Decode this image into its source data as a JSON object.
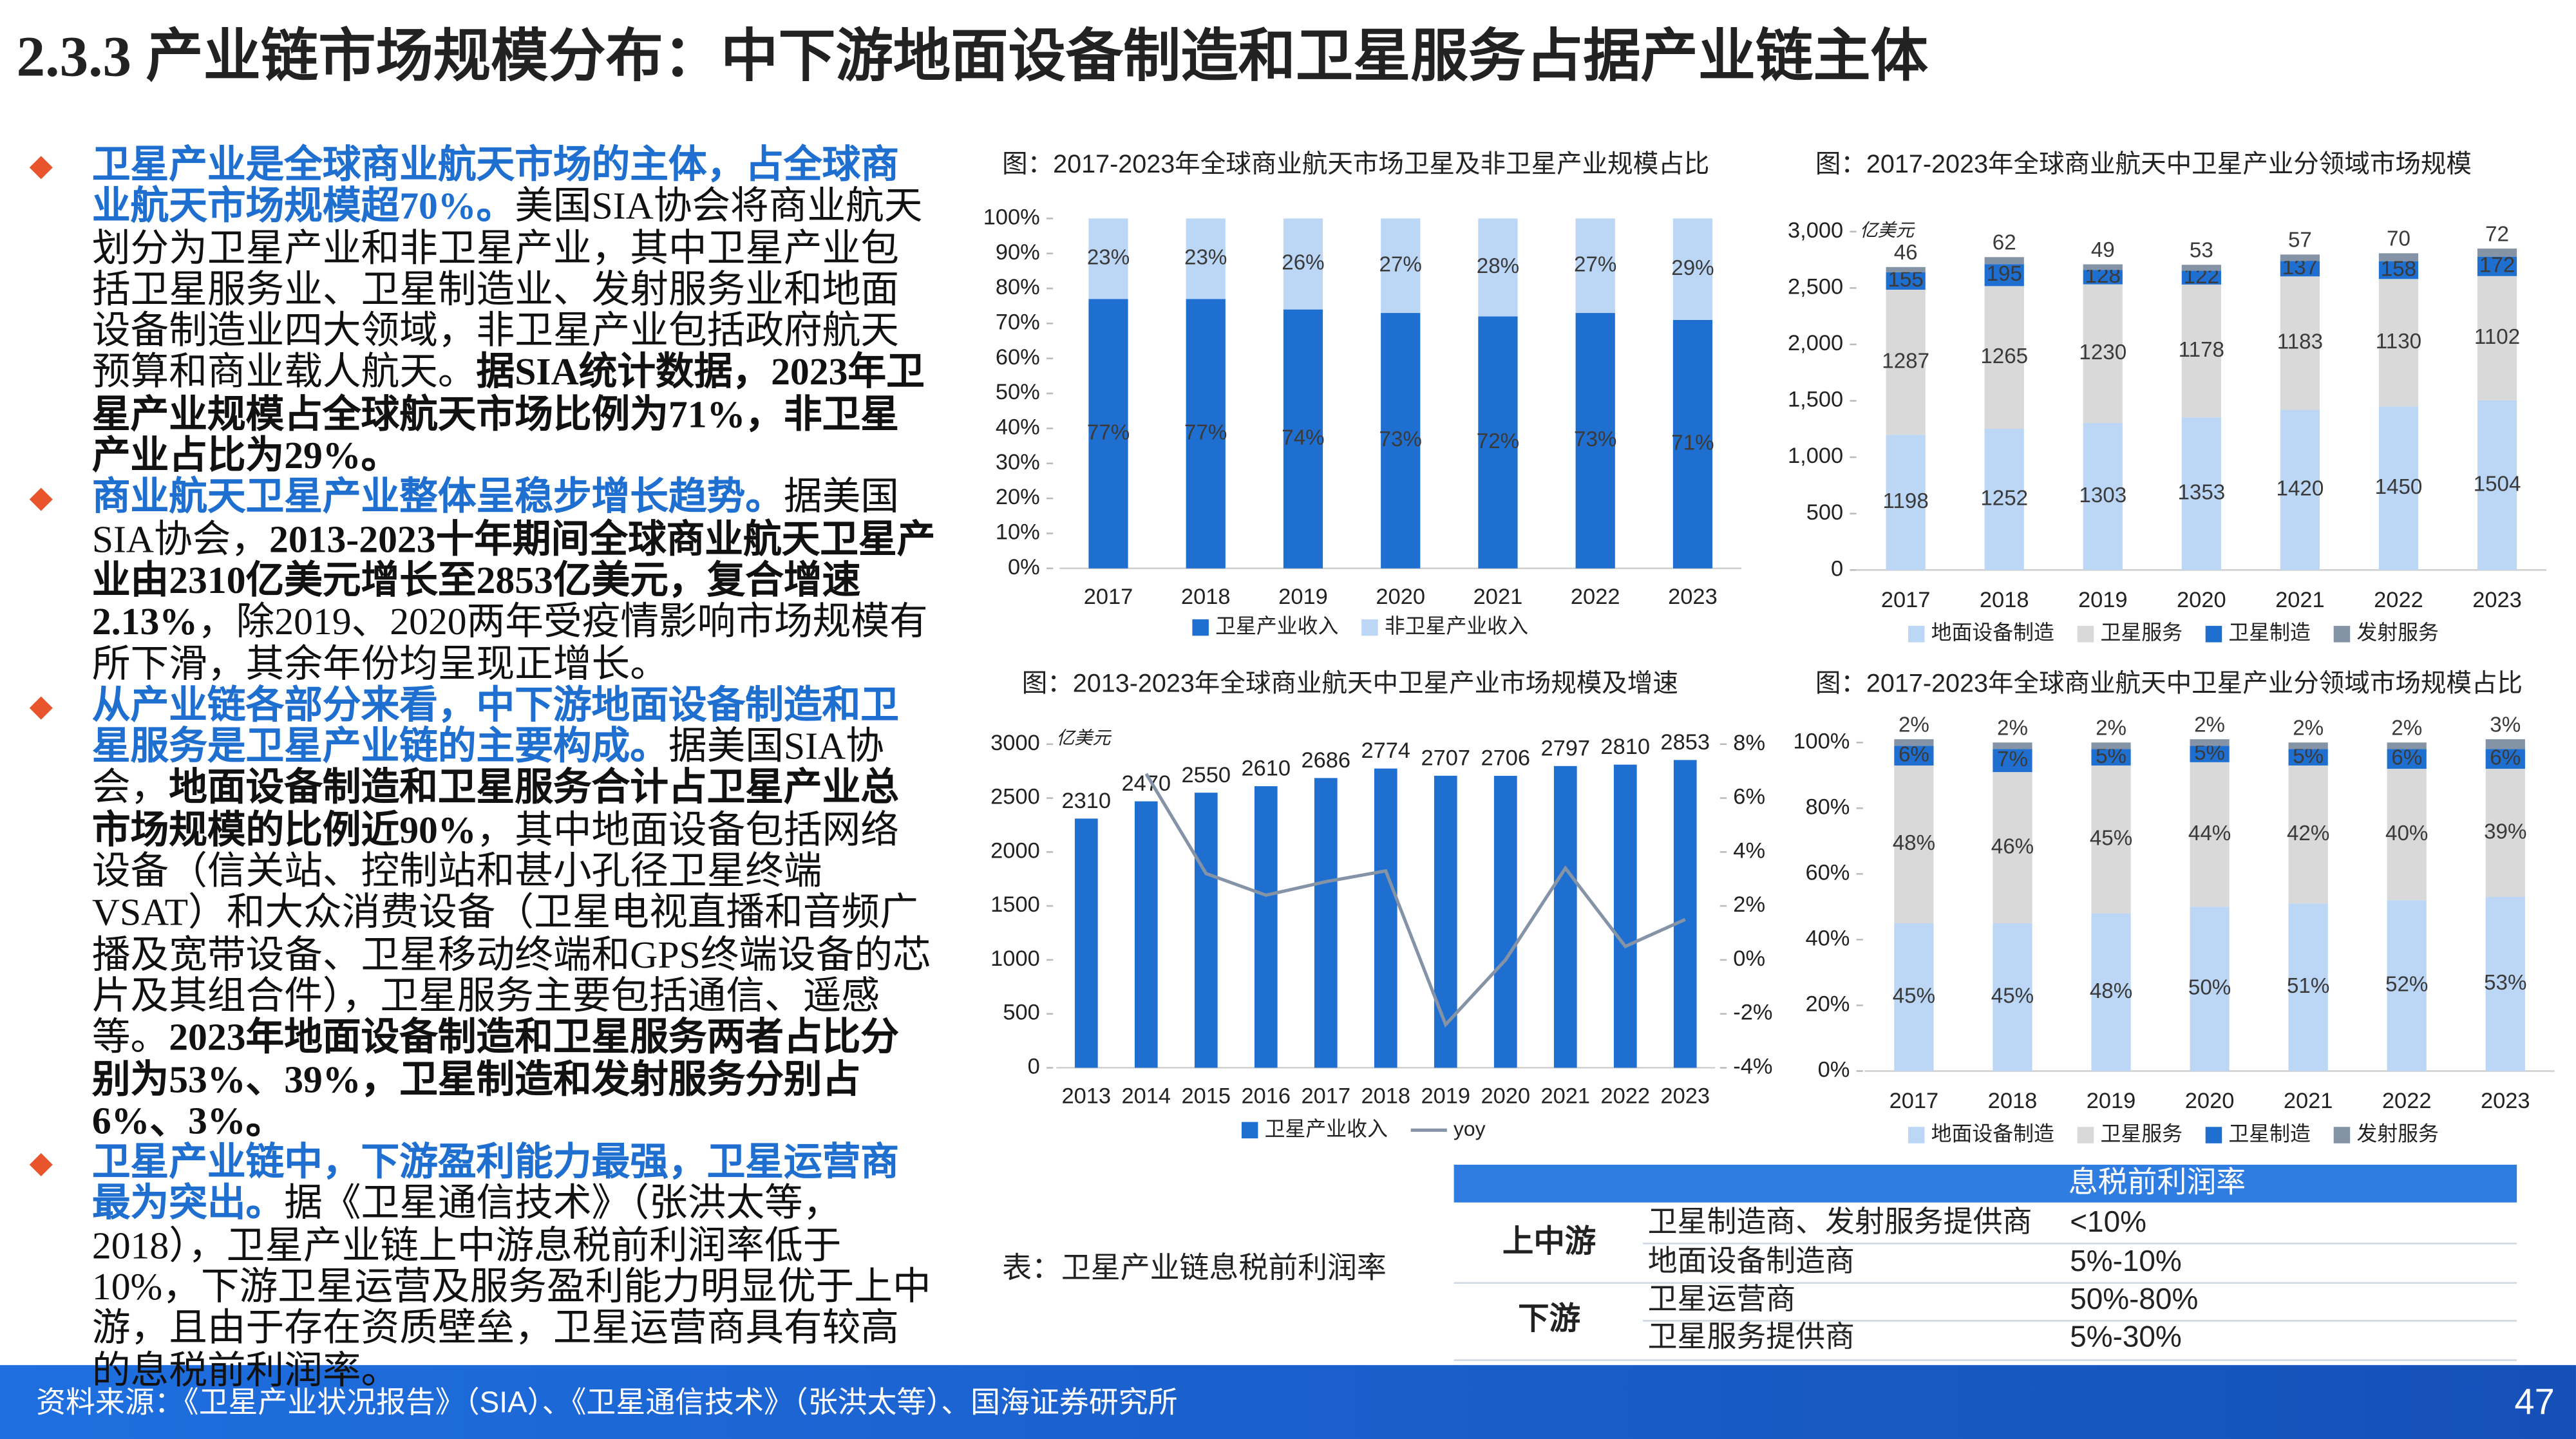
{
  "title": "2.3.3 产业链市场规模分布：中下游地面设备制造和卫星服务占据产业链主体",
  "bullets": [
    {
      "runs": [
        {
          "style": "emphasis",
          "text": "卫星产业是全球商业航天市场的主体，占全球商业航天市场规模超70%。"
        },
        {
          "style": "plain",
          "text": "美国SIA协会将商业航天划分为卫星产业和非卫星产业，其中卫星产业包括卫星服务业、卫星制造业、发射服务业和地面设备制造业四大领域，非卫星产业包括政府航天预算和商业载人航天。"
        },
        {
          "style": "strong",
          "text": "据SIA统计数据，2023年卫星产业规模占全球航天市场比例为71%，非卫星产业占比为29%。"
        }
      ]
    },
    {
      "runs": [
        {
          "style": "emphasis",
          "text": "商业航天卫星产业整体呈稳步增长趋势。"
        },
        {
          "style": "plain",
          "text": "据美国SIA协会，"
        },
        {
          "style": "strong",
          "text": "2013-2023十年期间全球商业航天卫星产业由2310亿美元增长至2853亿美元，复合增速2.13%"
        },
        {
          "style": "plain",
          "text": "，除2019、2020两年受疫情影响市场规模有所下滑，其余年份均呈现正增长。"
        }
      ]
    },
    {
      "runs": [
        {
          "style": "emphasis",
          "text": "从产业链各部分来看，中下游地面设备制造和卫星服务是卫星产业链的主要构成。"
        },
        {
          "style": "plain",
          "text": "据美国SIA协会，"
        },
        {
          "style": "strong",
          "text": "地面设备制造和卫星服务合计占卫星产业总市场规模的比例近90%"
        },
        {
          "style": "plain",
          "text": "，其中地面设备包括网络设备（信关站、控制站和甚小孔径卫星终端VSAT）和大众消费设备（卫星电视直播和音频广播及宽带设备、卫星移动终端和GPS终端设备的芯片及其组合件），卫星服务主要包括通信、遥感等。"
        },
        {
          "style": "strong",
          "text": "2023年地面设备制造和卫星服务两者占比分别为53%、39%，卫星制造和发射服务分别占6%、3%。"
        }
      ]
    },
    {
      "runs": [
        {
          "style": "emphasis",
          "text": "卫星产业链中，下游盈利能力最强，卫星运营商最为突出。"
        },
        {
          "style": "plain",
          "text": "据《卫星通信技术》（张洪太等，2018），卫星产业链上中游息税前利润率低于10%，下游卫星运营及服务盈利能力明显优于上中游，且由于存在资质壁垒，卫星运营商具有较高的息税前利润率。"
        }
      ]
    }
  ],
  "chart_data": [
    {
      "type": "stacked_bar",
      "title": "图：2017-2023年全球商业航天市场卫星及非卫星产业规模占比",
      "categories": [
        "2017",
        "2018",
        "2019",
        "2020",
        "2021",
        "2022",
        "2023"
      ],
      "series": [
        {
          "name": "卫星产业收入",
          "color": "#1e6fd0",
          "values": [
            77,
            77,
            74,
            73,
            72,
            73,
            71
          ],
          "value_labels": [
            "77%",
            "77%",
            "74%",
            "73%",
            "72%",
            "73%",
            "71%"
          ]
        },
        {
          "name": "非卫星产业收入",
          "color": "#bcd6f5",
          "values": [
            23,
            23,
            26,
            27,
            28,
            27,
            29
          ],
          "value_labels": [
            "23%",
            "23%",
            "26%",
            "27%",
            "28%",
            "27%",
            "29%"
          ]
        }
      ],
      "ylim": [
        0,
        100
      ],
      "yticks": [
        {
          "value": 0,
          "label": "0%"
        },
        {
          "value": 10,
          "label": "10%"
        },
        {
          "value": 20,
          "label": "20%"
        },
        {
          "value": 30,
          "label": "30%"
        },
        {
          "value": 40,
          "label": "40%"
        },
        {
          "value": 50,
          "label": "50%"
        },
        {
          "value": 60,
          "label": "60%"
        },
        {
          "value": 70,
          "label": "70%"
        },
        {
          "value": 80,
          "label": "80%"
        },
        {
          "value": 90,
          "label": "90%"
        },
        {
          "value": 100,
          "label": "100%"
        }
      ],
      "legend": "bottom"
    },
    {
      "type": "stacked_bar",
      "title": "图：2017-2023年全球商业航天中卫星产业分领域市场规模",
      "y_unit": "亿美元",
      "categories": [
        "2017",
        "2018",
        "2019",
        "2020",
        "2021",
        "2022",
        "2023"
      ],
      "series": [
        {
          "name": "地面设备制造",
          "color": "#bcd6f5",
          "values": [
            1198,
            1252,
            1303,
            1353,
            1420,
            1450,
            1504
          ]
        },
        {
          "name": "卫星服务",
          "color": "#d9d9d9",
          "values": [
            1287,
            1265,
            1230,
            1178,
            1183,
            1130,
            1102
          ]
        },
        {
          "name": "卫星制造",
          "color": "#1e6fd0",
          "values": [
            155,
            195,
            128,
            122,
            137,
            158,
            172
          ]
        },
        {
          "name": "发射服务",
          "color": "#8593a6",
          "values": [
            46,
            62,
            49,
            53,
            57,
            70,
            72
          ]
        }
      ],
      "ylim": [
        0,
        3000
      ],
      "yticks": [
        0,
        500,
        {
          "value": 1000,
          "label": "1,000"
        },
        {
          "value": 1500,
          "label": "1,500"
        },
        {
          "value": 2000,
          "label": "2,000"
        },
        {
          "value": 2500,
          "label": "2,500"
        },
        {
          "value": 3000,
          "label": "3,000"
        }
      ],
      "legend": "bottom"
    },
    {
      "type": "bar_line",
      "title": "图：2013-2023年全球商业航天中卫星产业市场规模及增速",
      "y_unit": "亿美元",
      "categories": [
        "2013",
        "2014",
        "2015",
        "2016",
        "2017",
        "2018",
        "2019",
        "2020",
        "2021",
        "2022",
        "2023"
      ],
      "series": [
        {
          "name": "卫星产业收入",
          "color": "#1e6fd0",
          "values": [
            2310,
            2470,
            2550,
            2610,
            2686,
            2774,
            2707,
            2706,
            2797,
            2810,
            2853
          ]
        },
        {
          "name": "yoy",
          "color": "#8593a6",
          "axis": "y2",
          "values": [
            null,
            6.9,
            3.2,
            2.4,
            2.9,
            3.3,
            -2.4,
            0.0,
            3.4,
            0.5,
            1.5
          ]
        }
      ],
      "ylim": [
        0,
        3000
      ],
      "yticks": [
        0,
        500,
        1000,
        1500,
        2000,
        2500,
        3000
      ],
      "y2lim": [
        -4,
        8
      ],
      "y2ticks": [
        {
          "value": -4,
          "label": "-4%"
        },
        {
          "value": -2,
          "label": "-2%"
        },
        {
          "value": 0,
          "label": "0%"
        },
        {
          "value": 2,
          "label": "2%"
        },
        {
          "value": 4,
          "label": "4%"
        },
        {
          "value": 6,
          "label": "6%"
        },
        {
          "value": 8,
          "label": "8%"
        }
      ],
      "legend": "bottom"
    },
    {
      "type": "stacked_bar",
      "title": "图：2017-2023年全球商业航天中卫星产业分领域市场规模占比",
      "categories": [
        "2017",
        "2018",
        "2019",
        "2020",
        "2021",
        "2022",
        "2023"
      ],
      "series": [
        {
          "name": "地面设备制造",
          "color": "#bcd6f5",
          "values": [
            45,
            45,
            48,
            50,
            51,
            52,
            53
          ],
          "value_labels": [
            "45%",
            "45%",
            "48%",
            "50%",
            "51%",
            "52%",
            "53%"
          ]
        },
        {
          "name": "卫星服务",
          "color": "#d9d9d9",
          "values": [
            48,
            46,
            45,
            44,
            42,
            40,
            39
          ],
          "value_labels": [
            "48%",
            "46%",
            "45%",
            "44%",
            "42%",
            "40%",
            "39%"
          ]
        },
        {
          "name": "卫星制造",
          "color": "#1e6fd0",
          "values": [
            6,
            7,
            5,
            5,
            5,
            6,
            6
          ],
          "value_labels": [
            "6%",
            "7%",
            "5%",
            "5%",
            "5%",
            "6%",
            "6%"
          ]
        },
        {
          "name": "发射服务",
          "color": "#8593a6",
          "values": [
            2,
            2,
            2,
            2,
            2,
            2,
            3
          ],
          "value_labels": [
            "2%",
            "2%",
            "2%",
            "2%",
            "2%",
            "2%",
            "3%"
          ]
        }
      ],
      "ylim": [
        0,
        100
      ],
      "yticks": [
        {
          "value": 0,
          "label": "0%"
        },
        {
          "value": 20,
          "label": "20%"
        },
        {
          "value": 40,
          "label": "40%"
        },
        {
          "value": 60,
          "label": "60%"
        },
        {
          "value": 80,
          "label": "80%"
        },
        {
          "value": 100,
          "label": "100%"
        }
      ],
      "legend": "bottom"
    }
  ],
  "table": {
    "caption": "表：卫星产业链息税前利润率",
    "header": "息税前利润率",
    "groups": [
      {
        "label": "上中游",
        "rows": [
          [
            "卫星制造商、发射服务提供商",
            "<10%"
          ],
          [
            "地面设备制造商",
            "5%-10%"
          ]
        ]
      },
      {
        "label": "下游",
        "rows": [
          [
            "卫星运营商",
            "50%-80%"
          ],
          [
            "卫星服务提供商",
            "5%-30%"
          ]
        ]
      }
    ]
  },
  "footer": {
    "source": "资料来源：《卫星产业状况报告》（SIA）、《卫星通信技术》（张洪太等）、国海证券研究所",
    "page": "47"
  }
}
